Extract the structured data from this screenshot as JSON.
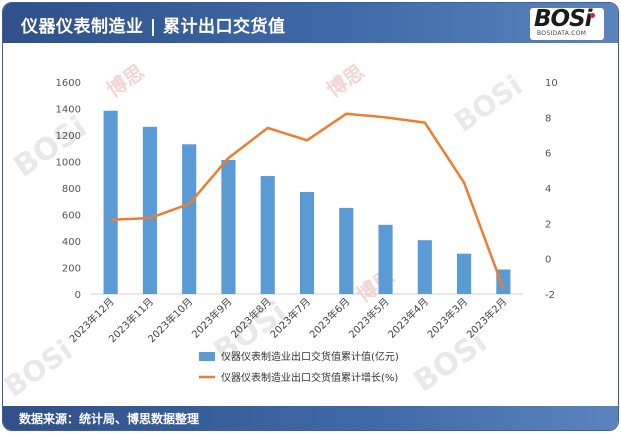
{
  "header": {
    "title": "仪器仪表制造业 | 累计出口交货值",
    "logo": "BOSi",
    "logo_sub": "BOSIDATA.COM"
  },
  "footer": {
    "source": "数据来源：统计局、博思数据整理"
  },
  "colors": {
    "bar": "#5b9bd5",
    "line": "#ed7d31",
    "header": "#2f5089"
  },
  "chart_data": {
    "type": "bar",
    "categories": [
      "2023年12月",
      "2023年11月",
      "2023年10月",
      "2023年9月",
      "2023年8月",
      "2023年7月",
      "2023年6月",
      "2023年5月",
      "2023年4月",
      "2023年3月",
      "2023年2月"
    ],
    "series": [
      {
        "name": "仪器仪表制造业出口交货值累计值(亿元)",
        "type": "bar",
        "axis": "left",
        "values": [
          1383,
          1262,
          1130,
          1012,
          890,
          770,
          650,
          522,
          406,
          304,
          185
        ]
      },
      {
        "name": "仪器仪表制造业出口交货值累计增长(%)",
        "type": "line",
        "axis": "right",
        "values": [
          2.2,
          2.3,
          3.1,
          5.7,
          7.4,
          6.7,
          8.2,
          8.0,
          7.7,
          4.3,
          -1.7
        ]
      }
    ],
    "ylim": [
      0,
      1600
    ],
    "yticks": [
      0,
      200,
      400,
      600,
      800,
      1000,
      1200,
      1400,
      1600
    ],
    "y2lim": [
      -2,
      10
    ],
    "y2ticks": [
      -2,
      0,
      2,
      4,
      6,
      8,
      10
    ],
    "legend_position": "bottom"
  }
}
